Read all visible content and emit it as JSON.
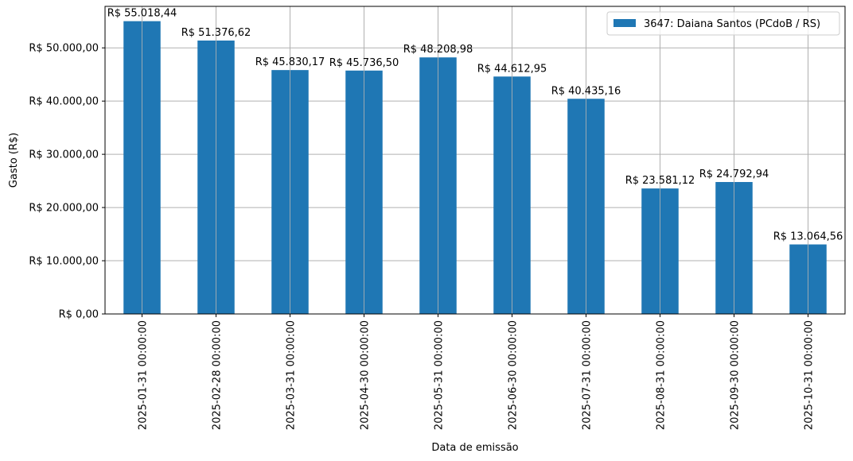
{
  "chart_data": {
    "type": "bar",
    "title": "",
    "xlabel": "Data de emissão",
    "ylabel": "Gasto (R$)",
    "ylim": [
      0,
      57800
    ],
    "yticks": [
      0,
      10000,
      20000,
      30000,
      40000,
      50000
    ],
    "ytick_labels": [
      "R$ 0,00",
      "R$ 10.000,00",
      "R$ 20.000,00",
      "R$ 30.000,00",
      "R$ 40.000,00",
      "R$ 50.000,00"
    ],
    "grid": true,
    "legend_position": "top-right",
    "categories": [
      "2025-01-31 00:00:00",
      "2025-02-28 00:00:00",
      "2025-03-31 00:00:00",
      "2025-04-30 00:00:00",
      "2025-05-31 00:00:00",
      "2025-06-30 00:00:00",
      "2025-07-31 00:00:00",
      "2025-08-31 00:00:00",
      "2025-09-30 00:00:00",
      "2025-10-31 00:00:00"
    ],
    "series": [
      {
        "name": "3647: Daiana Santos (PCdoB / RS)",
        "color": "#1f77b4",
        "values": [
          55018.44,
          51376.62,
          45830.17,
          45736.5,
          48208.98,
          44612.95,
          40435.16,
          23581.12,
          24792.94,
          13064.56
        ],
        "value_labels": [
          "R$ 55.018,44",
          "R$ 51.376,62",
          "R$ 45.830,17",
          "R$ 45.736,50",
          "R$ 48.208,98",
          "R$ 44.612,95",
          "R$ 40.435,16",
          "R$ 23.581,12",
          "R$ 24.792,94",
          "R$ 13.064,56"
        ]
      }
    ]
  }
}
